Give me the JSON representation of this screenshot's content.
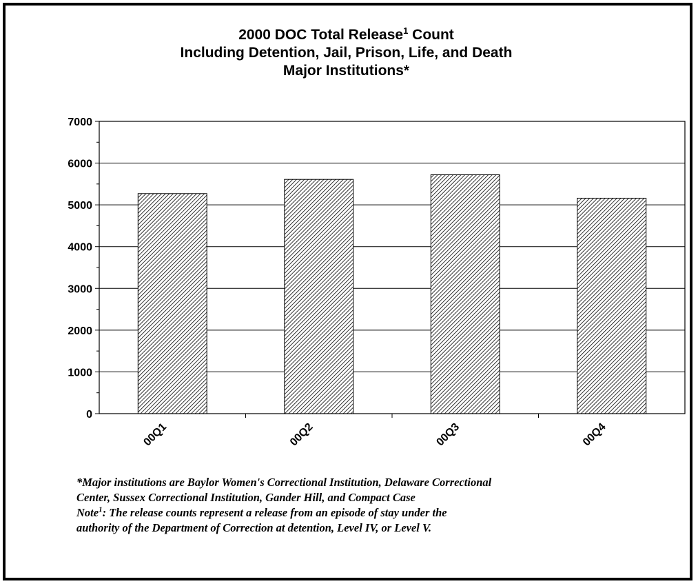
{
  "title": {
    "line1_prefix": "2000 DOC Total Release",
    "line1_sup": "1",
    "line1_suffix": " Count",
    "line2": "Including Detention, Jail, Prison, Life, and Death",
    "line3": "Major Institutions*"
  },
  "notes": {
    "line1": "*Major institutions are Baylor Women's Correctional Institution, Delaware Correctional",
    "line2": "Center, Sussex Correctional Institution, Gander Hill, and Compact Case",
    "line3_prefix": "Note",
    "line3_sup": "1",
    "line3_suffix": ": The release counts represent a release from an episode of stay under the",
    "line4": "authority of the Department of Correction at detention, Level IV, or Level V."
  },
  "chart_data": {
    "type": "bar",
    "title": "2000 DOC Total Release1 Count Including Detention, Jail, Prison, Life, and Death Major Institutions*",
    "categories": [
      "00Q1",
      "00Q2",
      "00Q3",
      "00Q4"
    ],
    "values": [
      5270,
      5610,
      5720,
      5160
    ],
    "xlabel": "",
    "ylabel": "",
    "ylim": [
      0,
      7000
    ],
    "yticks": [
      0,
      1000,
      2000,
      3000,
      4000,
      5000,
      6000,
      7000
    ],
    "grid": true,
    "legend": "none",
    "bar_fill": "diagonal hatch",
    "colors": {
      "bar_stroke": "#000000",
      "hatch": "#000000",
      "background": "#ffffff"
    }
  }
}
